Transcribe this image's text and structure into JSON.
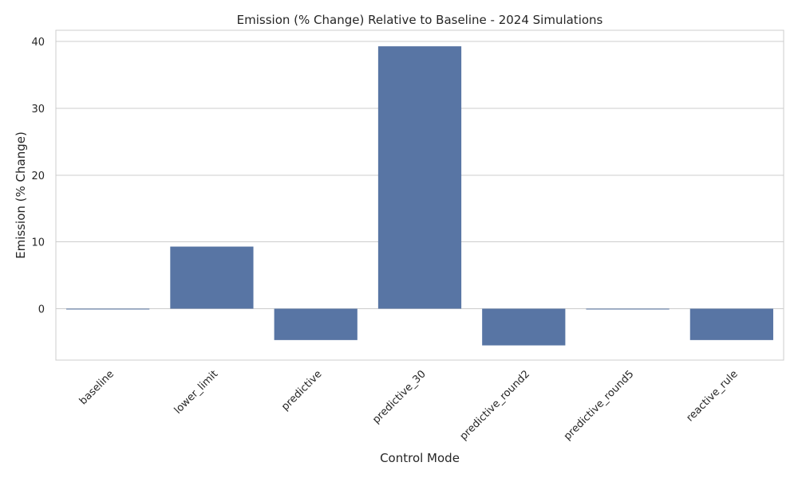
{
  "chart_data": {
    "type": "bar",
    "title": "Emission (% Change) Relative to Baseline - 2024 Simulations",
    "xlabel": "Control Mode",
    "ylabel": "Emission (% Change)",
    "categories": [
      "baseline",
      "lower_limit",
      "predictive",
      "predictive_30",
      "predictive_round2",
      "predictive_round5",
      "reactive_rule"
    ],
    "values": [
      0,
      9.3,
      -4.7,
      39.3,
      -5.5,
      0,
      -4.7
    ],
    "ylim": [
      -7.7,
      41.7
    ],
    "yticks": [
      0,
      10,
      20,
      30,
      40
    ],
    "bar_color": "#5875a4",
    "grid": true,
    "grid_color": "#cccccc",
    "legend": "none"
  }
}
